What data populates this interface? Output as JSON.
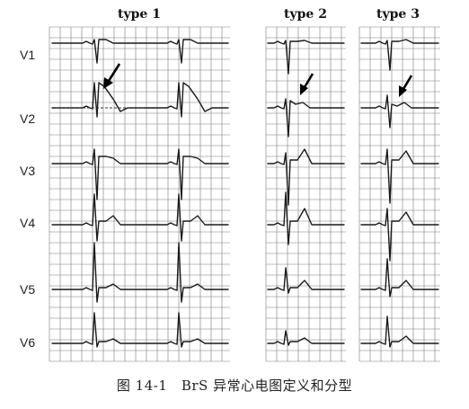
{
  "figure": {
    "caption": "图 14-1　BrS 异常心电图定义和分型",
    "leads": [
      "V1",
      "V2",
      "V3",
      "V4",
      "V5",
      "V6"
    ],
    "panels": [
      {
        "id": "type1",
        "title": "type 1"
      },
      {
        "id": "type2",
        "title": "type 2"
      },
      {
        "id": "type3",
        "title": "type 3"
      }
    ]
  }
}
